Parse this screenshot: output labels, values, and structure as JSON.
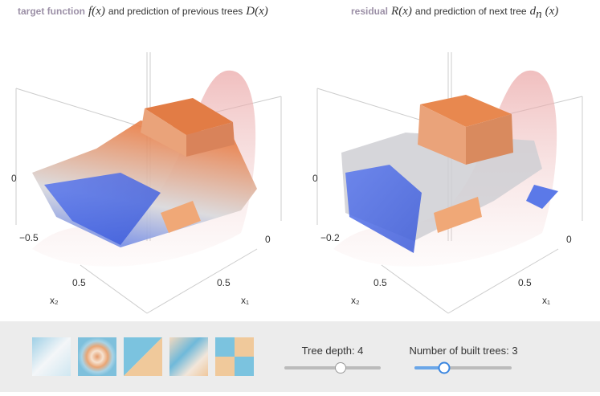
{
  "panels": [
    {
      "title": [
        {
          "text": "target function",
          "style": "label"
        },
        {
          "text": "f(x)",
          "style": "math"
        },
        {
          "text": "and prediction of previous trees",
          "style": "plain"
        },
        {
          "text": "D(x)",
          "style": "math"
        }
      ],
      "axis_labels": {
        "z_top": "0",
        "z_bottom": "−0.5",
        "x1_zero": "0",
        "x2_tick": "0.5",
        "x1_tick": "0.5",
        "x2": "x₂",
        "x1": "x₁"
      }
    },
    {
      "title": [
        {
          "text": "residual",
          "style": "label"
        },
        {
          "text": "R(x)",
          "style": "math"
        },
        {
          "text": "and prediction of next tree",
          "style": "plain"
        },
        {
          "text": "d",
          "style": "math"
        },
        {
          "text": "n",
          "style": "sub"
        },
        {
          "text": "(x)",
          "style": "math"
        }
      ],
      "axis_labels": {
        "z_top": "0",
        "z_bottom": "−0.2",
        "x1_zero": "0",
        "x2_tick": "0.5",
        "x1_tick": "0.5",
        "x2": "x₂",
        "x1": "x₁"
      }
    }
  ],
  "controls": {
    "sliders": [
      {
        "label": "Tree depth: 4"
      },
      {
        "label": "Number of built trees: 3"
      }
    ]
  }
}
